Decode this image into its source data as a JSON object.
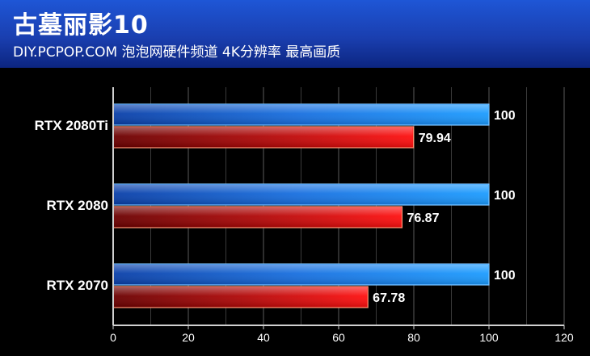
{
  "header": {
    "title": "古墓丽影10",
    "subtitle": "DIY.PCPOP.COM 泡泡网硬件频道 4K分辨率 最高画质"
  },
  "colors": {
    "background": "#000000",
    "header": "#1a3fb0",
    "series_blue": "#1a8cf0",
    "series_red": "#e01010"
  },
  "chart_data": {
    "type": "bar",
    "orientation": "horizontal",
    "categories": [
      "RTX 2080Ti",
      "RTX 2080",
      "RTX 2070"
    ],
    "series": [
      {
        "values": [
          100,
          100,
          100
        ],
        "labels": [
          "100",
          "100",
          "100"
        ]
      },
      {
        "values": [
          79.94,
          76.87,
          67.78
        ],
        "labels": [
          "79.94",
          "76.87",
          "67.78"
        ]
      }
    ],
    "xlim": [
      0,
      120
    ],
    "xticks": [
      0,
      20,
      40,
      60,
      80,
      100,
      120
    ],
    "grid": true,
    "legend": "none"
  }
}
